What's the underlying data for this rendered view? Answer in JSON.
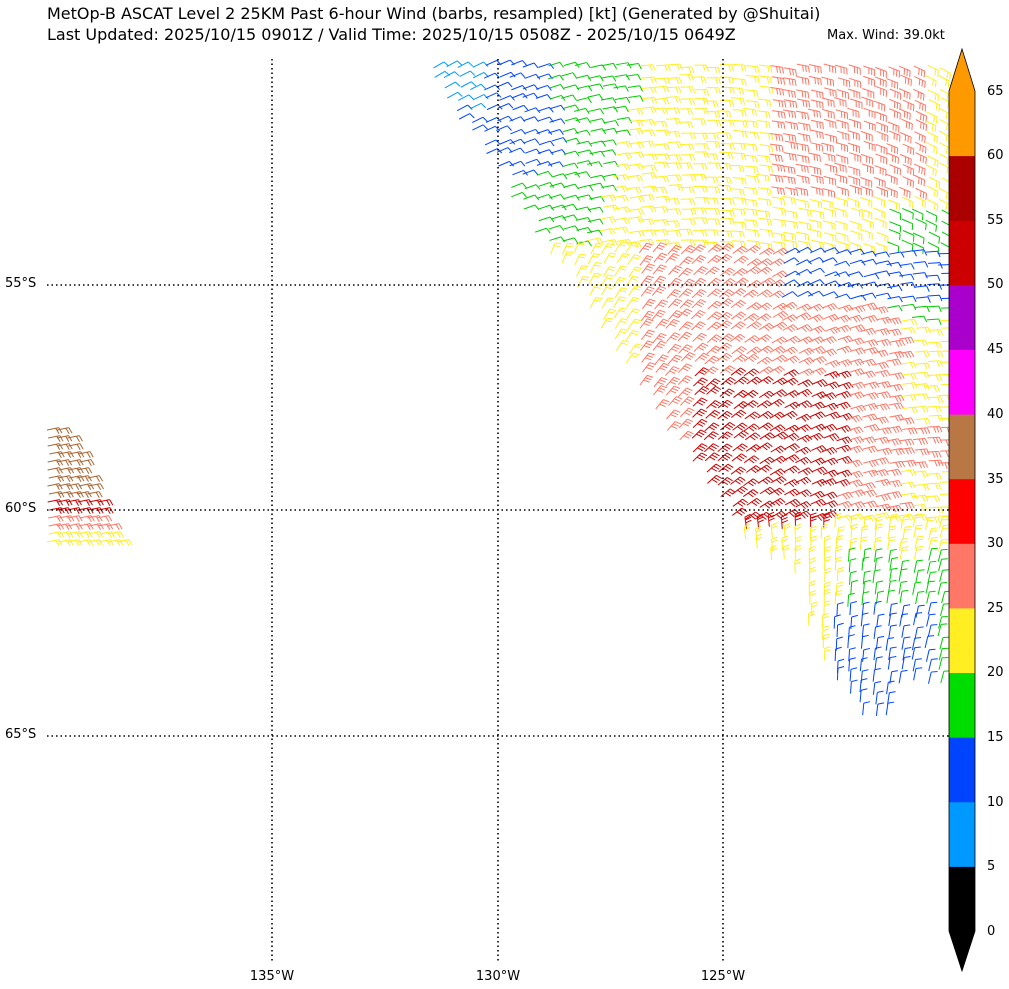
{
  "header": {
    "title_line1": "MetOp-B ASCAT Level 2 25KM Past 6-hour Wind (barbs, resampled) [kt] (Generated by @Shuitai)",
    "title_line2": "Last Updated: 2025/10/15 0901Z / Valid Time: 2025/10/15 0508Z - 2025/10/15 0649Z",
    "max_wind": "Max. Wind: 39.0kt"
  },
  "map": {
    "latitude_labels": [
      "55°S",
      "60°S",
      "65°S"
    ],
    "longitude_labels": [
      "135°W",
      "130°W",
      "125°W"
    ],
    "lat_values": [
      -55,
      -60,
      -65
    ],
    "lon_values": [
      -135,
      -130,
      -125
    ],
    "gridline_style": "dotted",
    "swaths": [
      {
        "name": "main-swath",
        "colors": [
          "#0099ff",
          "#0044ff",
          "#00cc00",
          "#ffee22",
          "#ff7766",
          "#cc0000"
        ]
      },
      {
        "name": "left-swath",
        "colors": [
          "#aa6633",
          "#cc0000",
          "#ff7766",
          "#ffee22"
        ]
      }
    ]
  },
  "colorbar": {
    "tick_labels": [
      "0",
      "5",
      "10",
      "15",
      "20",
      "25",
      "30",
      "35",
      "40",
      "45",
      "50",
      "55",
      "60",
      "65"
    ],
    "bins": [
      {
        "from": 0,
        "to": 5,
        "color": "#000000"
      },
      {
        "from": 5,
        "to": 10,
        "color": "#0099ff"
      },
      {
        "from": 10,
        "to": 15,
        "color": "#0044ff"
      },
      {
        "from": 15,
        "to": 20,
        "color": "#00dd00"
      },
      {
        "from": 20,
        "to": 25,
        "color": "#ffee22"
      },
      {
        "from": 25,
        "to": 30,
        "color": "#ff7766"
      },
      {
        "from": 30,
        "to": 35,
        "color": "#ff0000"
      },
      {
        "from": 35,
        "to": 40,
        "color": "#b87744"
      },
      {
        "from": 40,
        "to": 45,
        "color": "#ff00ff"
      },
      {
        "from": 45,
        "to": 50,
        "color": "#aa00cc"
      },
      {
        "from": 50,
        "to": 55,
        "color": "#cc0000"
      },
      {
        "from": 55,
        "to": 60,
        "color": "#aa0000"
      },
      {
        "from": 60,
        "to": 65,
        "color": "#ff9900"
      }
    ],
    "under_color": "#000000",
    "over_color": "#ff9900"
  }
}
